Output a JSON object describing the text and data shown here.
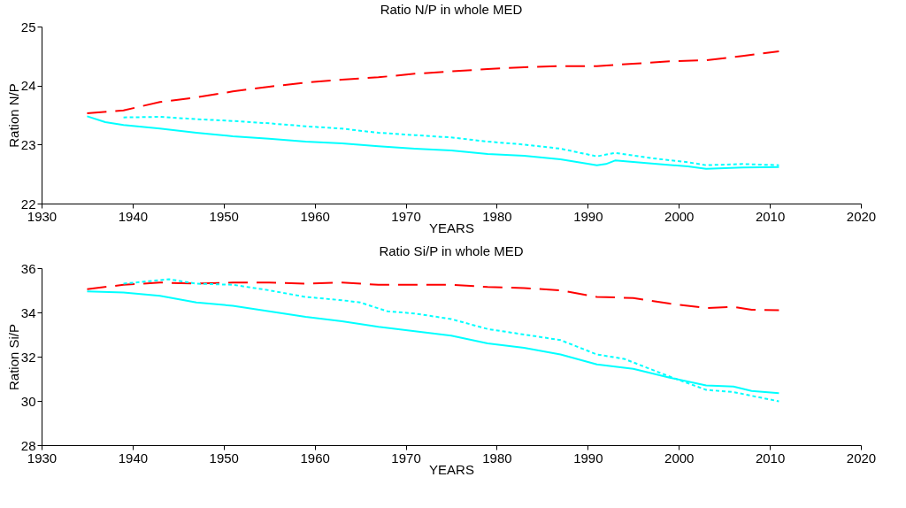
{
  "chart_data": [
    {
      "type": "line",
      "title": "Ratio N/P in whole MED",
      "xlabel": "YEARS",
      "ylabel": "Ration N/P",
      "xlim": [
        1930,
        2020
      ],
      "xticks": [
        1930,
        1940,
        1950,
        1960,
        1970,
        1980,
        1990,
        2000,
        2010,
        2020
      ],
      "ylim": [
        22,
        25
      ],
      "yticks": [
        22,
        23,
        24,
        25
      ],
      "grid": false,
      "series": [
        {
          "color": "#ff0000",
          "line_style": "dashed",
          "x": [
            1935,
            1939,
            1943,
            1947,
            1951,
            1955,
            1959,
            1963,
            1967,
            1971,
            1975,
            1979,
            1983,
            1987,
            1991,
            1995,
            1999,
            2003,
            2007,
            2011
          ],
          "values": [
            23.53,
            23.58,
            23.72,
            23.8,
            23.9,
            23.98,
            24.05,
            24.1,
            24.14,
            24.2,
            24.24,
            24.28,
            24.31,
            24.33,
            24.33,
            24.37,
            24.41,
            24.43,
            24.5,
            24.58
          ]
        },
        {
          "color": "#00ffff",
          "line_style": "solid",
          "x": [
            1935,
            1937,
            1939,
            1943,
            1947,
            1951,
            1955,
            1959,
            1963,
            1967,
            1971,
            1975,
            1979,
            1983,
            1987,
            1991,
            1992,
            1993,
            1997,
            2001,
            2003,
            2007,
            2011
          ],
          "values": [
            23.48,
            23.38,
            23.33,
            23.27,
            23.2,
            23.14,
            23.1,
            23.05,
            23.02,
            22.97,
            22.93,
            22.9,
            22.84,
            22.81,
            22.75,
            22.65,
            22.67,
            22.73,
            22.68,
            22.63,
            22.59,
            22.61,
            22.62
          ]
        },
        {
          "color": "#00ffff",
          "line_style": "dotted",
          "x": [
            1939,
            1943,
            1947,
            1951,
            1955,
            1959,
            1963,
            1967,
            1971,
            1975,
            1979,
            1983,
            1987,
            1991,
            1993,
            1997,
            2001,
            2003,
            2007,
            2011
          ],
          "values": [
            23.46,
            23.47,
            23.43,
            23.4,
            23.36,
            23.31,
            23.27,
            23.2,
            23.16,
            23.12,
            23.05,
            23.0,
            22.93,
            22.8,
            22.86,
            22.77,
            22.7,
            22.65,
            22.67,
            22.65
          ]
        }
      ]
    },
    {
      "type": "line",
      "title": "Ratio Si/P in whole MED",
      "xlabel": "YEARS",
      "ylabel": "Ration Si/P",
      "xlim": [
        1930,
        2020
      ],
      "xticks": [
        1930,
        1940,
        1950,
        1960,
        1970,
        1980,
        1990,
        2000,
        2010,
        2020
      ],
      "ylim": [
        28,
        36
      ],
      "yticks": [
        28,
        30,
        32,
        34,
        36
      ],
      "grid": false,
      "series": [
        {
          "color": "#ff0000",
          "line_style": "dashed",
          "x": [
            1935,
            1939,
            1943,
            1947,
            1951,
            1955,
            1959,
            1963,
            1967,
            1971,
            1975,
            1979,
            1983,
            1987,
            1991,
            1995,
            1999,
            2003,
            2006,
            2008,
            2011
          ],
          "values": [
            35.05,
            35.25,
            35.35,
            35.3,
            35.35,
            35.35,
            35.3,
            35.35,
            35.25,
            35.25,
            35.25,
            35.15,
            35.1,
            35.0,
            34.7,
            34.65,
            34.4,
            34.2,
            34.25,
            34.12,
            34.1
          ]
        },
        {
          "color": "#00ffff",
          "line_style": "solid",
          "x": [
            1935,
            1939,
            1943,
            1947,
            1951,
            1955,
            1959,
            1963,
            1967,
            1971,
            1975,
            1979,
            1983,
            1987,
            1991,
            1995,
            1999,
            2003,
            2006,
            2008,
            2011
          ],
          "values": [
            34.95,
            34.9,
            34.75,
            34.45,
            34.3,
            34.05,
            33.8,
            33.6,
            33.35,
            33.15,
            32.95,
            32.6,
            32.4,
            32.1,
            31.65,
            31.45,
            31.05,
            30.7,
            30.65,
            30.45,
            30.35
          ]
        },
        {
          "color": "#00ffff",
          "line_style": "dotted",
          "x": [
            1939,
            1944,
            1947,
            1951,
            1955,
            1959,
            1963,
            1965,
            1968,
            1971,
            1975,
            1979,
            1983,
            1987,
            1991,
            1994,
            1999,
            2003,
            2006,
            2011
          ],
          "values": [
            35.3,
            35.5,
            35.3,
            35.25,
            35.0,
            34.7,
            34.55,
            34.45,
            34.05,
            33.95,
            33.7,
            33.25,
            33.0,
            32.75,
            32.1,
            31.9,
            31.1,
            30.5,
            30.4,
            29.98
          ]
        }
      ]
    }
  ]
}
